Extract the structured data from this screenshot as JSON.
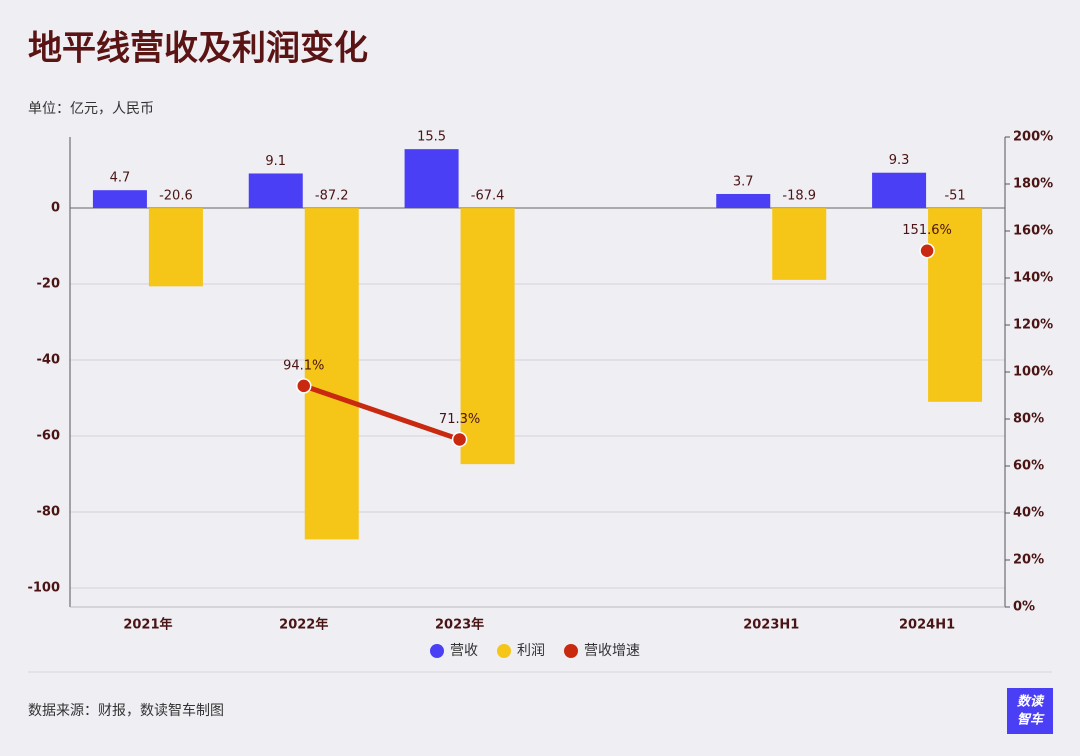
{
  "chart_data": {
    "type": "bar",
    "title": "地平线营收及利润变化",
    "subtitle": "单位：亿元，人民币",
    "source": "数据来源：财报，数读智车制图",
    "categories": [
      "2021年",
      "2022年",
      "2023年",
      null,
      "2023H1",
      "2024H1"
    ],
    "series": [
      {
        "name": "营收",
        "color": "#4a3ff5",
        "values": [
          4.7,
          9.1,
          15.5,
          null,
          3.7,
          9.3
        ]
      },
      {
        "name": "利润",
        "color": "#f5c518",
        "values": [
          -20.6,
          -87.2,
          -67.4,
          null,
          -18.9,
          -51
        ]
      },
      {
        "name": "营收增速",
        "type": "line",
        "axis": "y2",
        "color": "#c8290f",
        "values": [
          null,
          94.1,
          71.3,
          null,
          null,
          151.6
        ],
        "value_labels": [
          null,
          "94.1%",
          "71.3%",
          null,
          null,
          "151.6%"
        ]
      }
    ],
    "ylim": [
      -105,
      18.7
    ],
    "yticks": [
      0,
      -20,
      -40,
      -60,
      -80,
      -100
    ],
    "y2lim": [
      0,
      200
    ],
    "y2ticks": [
      {
        "value": 0,
        "label": "0%"
      },
      {
        "value": 20,
        "label": "20%"
      },
      {
        "value": 40,
        "label": "40%"
      },
      {
        "value": 60,
        "label": "60%"
      },
      {
        "value": 80,
        "label": "80%"
      },
      {
        "value": 100,
        "label": "100%"
      },
      {
        "value": 120,
        "label": "120%"
      },
      {
        "value": 140,
        "label": "140%"
      },
      {
        "value": 160,
        "label": "160%"
      },
      {
        "value": 180,
        "label": "180%"
      },
      {
        "value": 200,
        "label": "200%"
      }
    ],
    "grid": true,
    "legend": "bottom"
  },
  "logo": [
    "数读",
    "智车"
  ]
}
